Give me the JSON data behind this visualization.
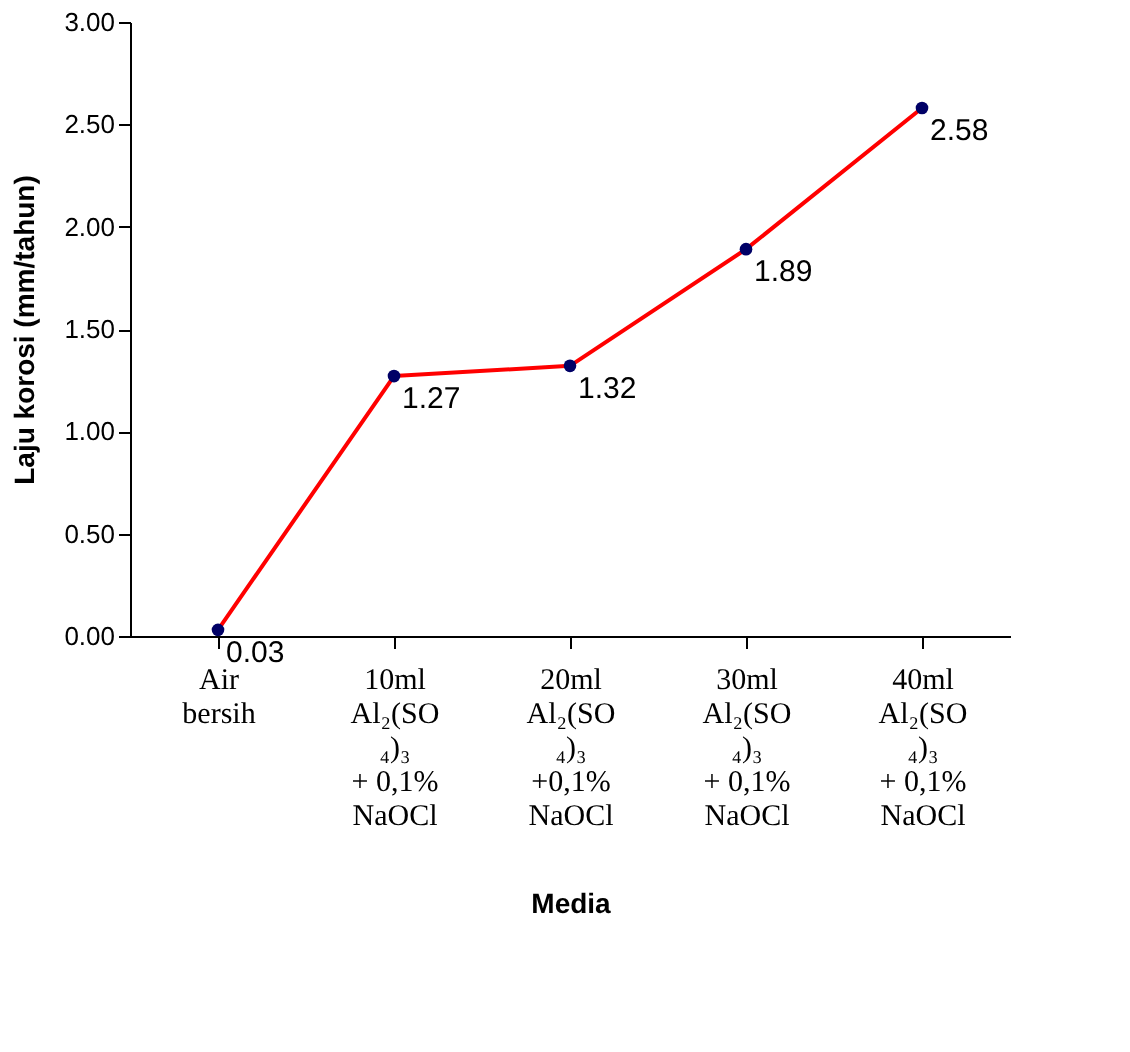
{
  "chart_data": {
    "type": "line",
    "categories": [
      "Air\nbersih",
      "10ml\nAl₂(SO\n₄)₃\n+ 0,1%\nNaOCl",
      "20ml\nAl₂(SO\n₄)₃\n+0,1%\nNaOCl",
      "30ml\nAl₂(SO\n₄)₃\n+ 0,1%\nNaOCl",
      "40ml\nAl₂(SO\n₄)₃\n+ 0,1%\nNaOCl"
    ],
    "series": [
      {
        "color": "#ff0000",
        "values": [
          0.03,
          1.27,
          1.32,
          1.89,
          2.58
        ]
      }
    ],
    "xlabel": "Media",
    "ylabel": "Laju korosi (mm/tahun)",
    "ylim": [
      0,
      3
    ],
    "yticks": [
      {
        "value": 0,
        "label": "0.00"
      },
      {
        "value": 0.5,
        "label": "0.50"
      },
      {
        "value": 1,
        "label": "1.00"
      },
      {
        "value": 1.5,
        "label": "1.50"
      },
      {
        "value": 2,
        "label": "2.00"
      },
      {
        "value": 2.5,
        "label": "2.50"
      },
      {
        "value": 3,
        "label": "3.00"
      }
    ],
    "data_labels": true,
    "marker": "circle",
    "line_style": "solid",
    "grid": false
  }
}
